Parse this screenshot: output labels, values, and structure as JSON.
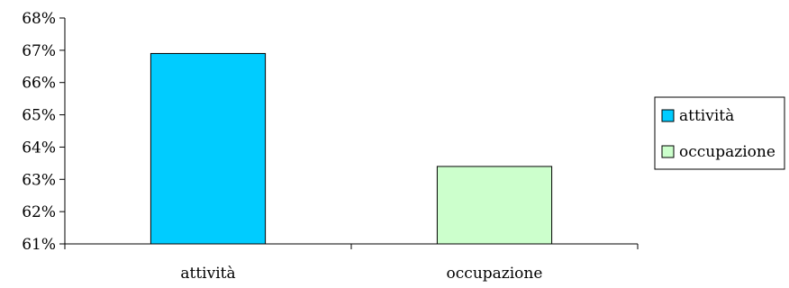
{
  "chart_data": {
    "type": "bar",
    "categories": [
      "attività",
      "occupazione"
    ],
    "values": [
      66.9,
      63.4
    ],
    "colors": [
      "#00ccff",
      "#ccffcc"
    ],
    "ylim": [
      61,
      68
    ],
    "yticks": [
      61,
      62,
      63,
      64,
      65,
      66,
      67,
      68
    ],
    "ytick_suffix": "%",
    "grid": false,
    "legend": {
      "placement": "right",
      "entries": [
        "attività",
        "occupazione"
      ]
    }
  }
}
